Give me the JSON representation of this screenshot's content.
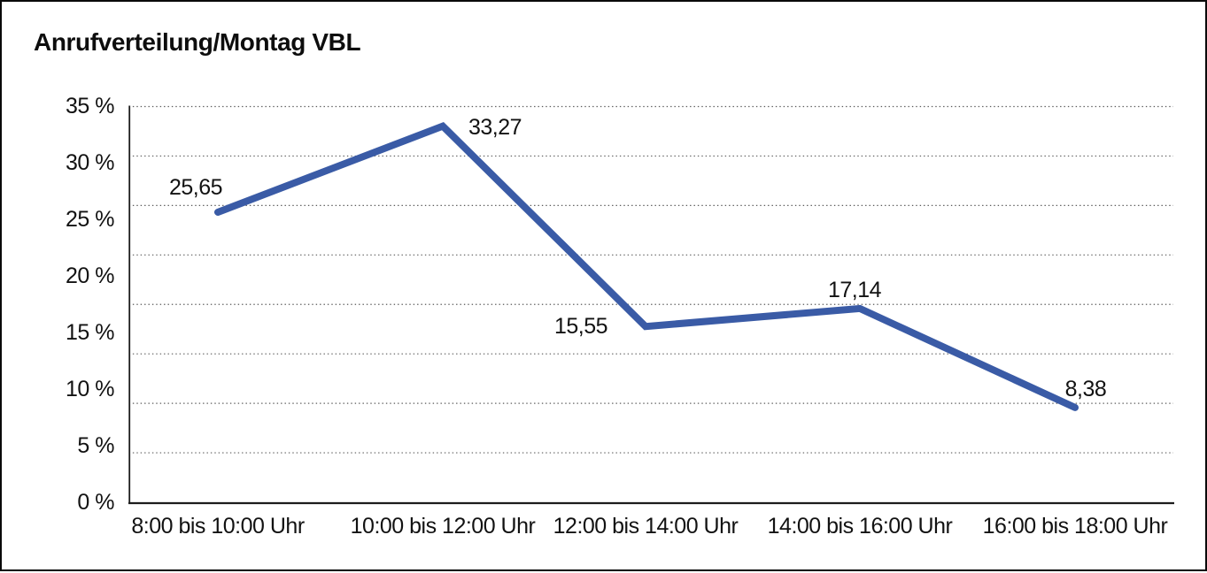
{
  "chart_data": {
    "type": "line",
    "title": "Anrufverteilung/Montag VBL",
    "categories": [
      "8:00 bis 10:00 Uhr",
      "10:00 bis 12:00 Uhr",
      "12:00 bis 14:00 Uhr",
      "14:00 bis 16:00 Uhr",
      "16:00 bis 18:00 Uhr"
    ],
    "values": [
      25.65,
      33.27,
      15.55,
      17.14,
      8.38
    ],
    "point_labels": [
      "25,65",
      "33,27",
      "15,55",
      "17,14",
      "8,38"
    ],
    "ytick_labels": [
      "35 %",
      "30 %",
      "25 %",
      "20 %",
      "15 %",
      "10 %",
      "5 %",
      "0 %"
    ],
    "ylim": [
      0,
      35
    ],
    "xlabel": "",
    "ylabel": "",
    "legend": "none",
    "grid": "horizontal-dotted",
    "line_color": "#3A5BA6",
    "axis_color": "#1c1c1c",
    "grid_color": "#5a5a5a",
    "text_color": "#121212",
    "background_color": "#ffffff"
  }
}
